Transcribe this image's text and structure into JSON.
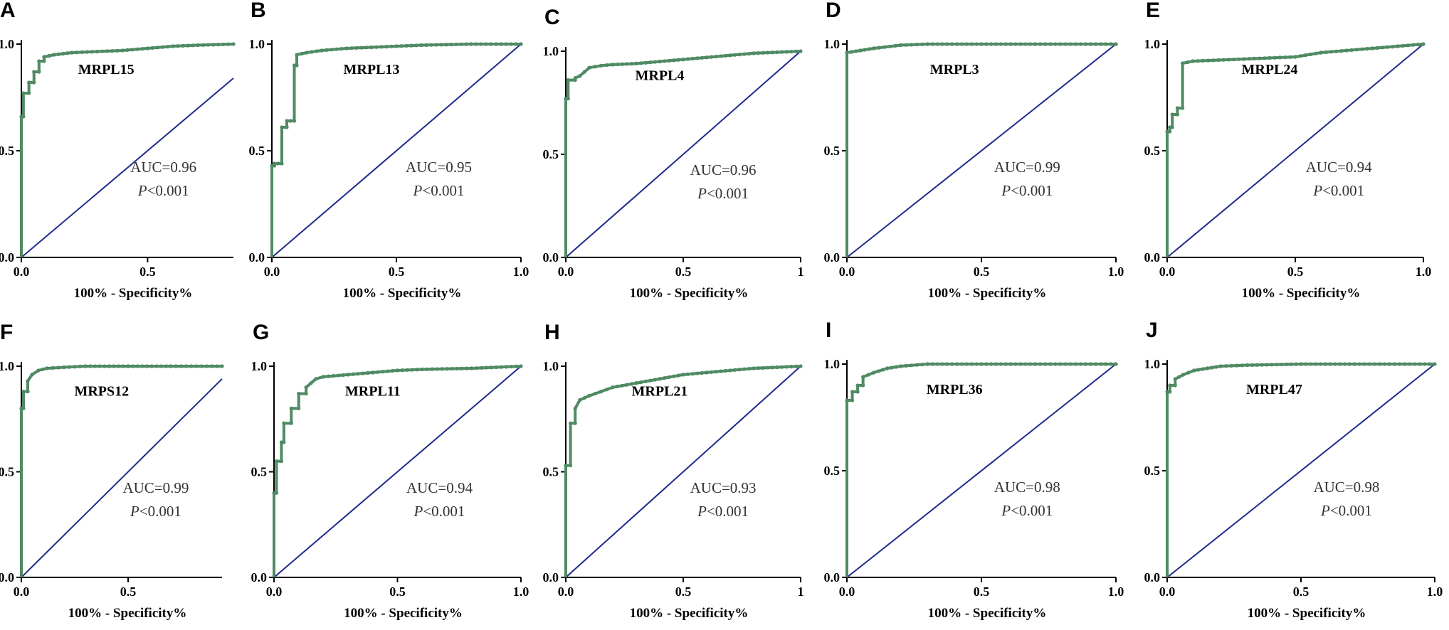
{
  "chart_data": [
    {
      "type": "line",
      "panel": "A",
      "title": "MRPL15",
      "auc_label": "AUC=0.96",
      "p_prefix": "P",
      "p_rest": "<0.001",
      "xlabel": "100% - Specificity%",
      "ylabel": "",
      "xticks": [
        "0.0",
        "0.5"
      ],
      "yticks": [
        "0.0",
        "0.5",
        "1.0"
      ],
      "xlim": [
        0,
        0.84
      ],
      "ylim": [
        0,
        1
      ],
      "series": [
        {
          "name": "ROC",
          "x": [
            0,
            0,
            0.008,
            0.008,
            0.03,
            0.03,
            0.05,
            0.05,
            0.07,
            0.07,
            0.09,
            0.09,
            0.13,
            0.2,
            0.3,
            0.4,
            0.5,
            0.6,
            0.7,
            0.84
          ],
          "y": [
            0,
            0.66,
            0.66,
            0.77,
            0.77,
            0.82,
            0.82,
            0.87,
            0.87,
            0.92,
            0.92,
            0.94,
            0.95,
            0.96,
            0.965,
            0.97,
            0.98,
            0.99,
            0.995,
            1.0
          ]
        },
        {
          "name": "Reference",
          "x": [
            0,
            0.84
          ],
          "y": [
            0,
            0.84
          ]
        }
      ]
    },
    {
      "type": "line",
      "panel": "B",
      "title": "MRPL13",
      "auc_label": "AUC=0.95",
      "p_prefix": "P",
      "p_rest": "<0.001",
      "xlabel": "100% - Specificity%",
      "ylabel": "",
      "xticks": [
        "0.0",
        "0.5",
        "1.0"
      ],
      "yticks": [
        "0.0",
        "0.5",
        "1.0"
      ],
      "xlim": [
        0,
        1
      ],
      "ylim": [
        0,
        1
      ],
      "series": [
        {
          "name": "ROC",
          "x": [
            0,
            0,
            0.01,
            0.01,
            0.04,
            0.04,
            0.06,
            0.06,
            0.09,
            0.09,
            0.1,
            0.1,
            0.14,
            0.2,
            0.3,
            0.4,
            0.5,
            0.6,
            0.8,
            1.0
          ],
          "y": [
            0,
            0.43,
            0.43,
            0.44,
            0.44,
            0.61,
            0.61,
            0.64,
            0.64,
            0.9,
            0.9,
            0.95,
            0.96,
            0.97,
            0.98,
            0.985,
            0.99,
            0.995,
            1.0,
            1.0
          ]
        },
        {
          "name": "Reference",
          "x": [
            0,
            1
          ],
          "y": [
            0,
            1
          ]
        }
      ]
    },
    {
      "type": "line",
      "panel": "C",
      "title": "MRPL4",
      "auc_label": "AUC=0.96",
      "p_prefix": "P",
      "p_rest": "<0.001",
      "xlabel": "100% - Specificity%",
      "ylabel": "",
      "xticks": [
        "0.0",
        "0.5",
        "1"
      ],
      "yticks": [
        "0.0",
        "0.5",
        "1.0"
      ],
      "xlim": [
        0,
        1
      ],
      "ylim": [
        0,
        1
      ],
      "series": [
        {
          "name": "ROC",
          "x": [
            0,
            0,
            0.01,
            0.01,
            0.04,
            0.04,
            0.06,
            0.08,
            0.1,
            0.15,
            0.2,
            0.3,
            0.4,
            0.5,
            0.6,
            0.7,
            0.8,
            0.9,
            1.0
          ],
          "y": [
            0,
            0.77,
            0.77,
            0.86,
            0.86,
            0.87,
            0.88,
            0.9,
            0.92,
            0.93,
            0.935,
            0.94,
            0.95,
            0.96,
            0.97,
            0.98,
            0.99,
            0.995,
            1.0
          ]
        },
        {
          "name": "Reference",
          "x": [
            0,
            1
          ],
          "y": [
            0,
            1
          ]
        }
      ]
    },
    {
      "type": "line",
      "panel": "D",
      "title": "MRPL3",
      "auc_label": "AUC=0.99",
      "p_prefix": "P",
      "p_rest": "<0.001",
      "xlabel": "100% - Specificity%",
      "ylabel": "",
      "xticks": [
        "0.0",
        "0.5",
        "1.0"
      ],
      "yticks": [
        "0.0",
        "0.5",
        "1.0"
      ],
      "xlim": [
        0,
        1
      ],
      "ylim": [
        0,
        1
      ],
      "series": [
        {
          "name": "ROC",
          "x": [
            0,
            0,
            0.05,
            0.1,
            0.2,
            0.3,
            0.5,
            0.7,
            1.0
          ],
          "y": [
            0,
            0.96,
            0.97,
            0.98,
            0.995,
            1.0,
            1.0,
            1.0,
            1.0
          ]
        },
        {
          "name": "Reference",
          "x": [
            0,
            1
          ],
          "y": [
            0,
            1
          ]
        }
      ]
    },
    {
      "type": "line",
      "panel": "E",
      "title": "MRPL24",
      "auc_label": "AUC=0.94",
      "p_prefix": "P",
      "p_rest": "<0.001",
      "xlabel": "100% - Specificity%",
      "ylabel": "",
      "xticks": [
        "0.0",
        "0.5",
        "1.0"
      ],
      "yticks": [
        "0.0",
        "0.5",
        "1.0"
      ],
      "xlim": [
        0,
        1
      ],
      "ylim": [
        0,
        1
      ],
      "series": [
        {
          "name": "ROC",
          "x": [
            0,
            0,
            0.01,
            0.01,
            0.02,
            0.02,
            0.04,
            0.04,
            0.06,
            0.06,
            0.1,
            0.2,
            0.3,
            0.4,
            0.5,
            0.6,
            0.7,
            0.8,
            0.9,
            1.0
          ],
          "y": [
            0,
            0.59,
            0.59,
            0.61,
            0.61,
            0.67,
            0.67,
            0.7,
            0.7,
            0.91,
            0.92,
            0.925,
            0.93,
            0.935,
            0.94,
            0.96,
            0.97,
            0.98,
            0.99,
            1.0
          ]
        },
        {
          "name": "Reference",
          "x": [
            0,
            1
          ],
          "y": [
            0,
            1
          ]
        }
      ]
    },
    {
      "type": "line",
      "panel": "F",
      "title": "MRPS12",
      "auc_label": "AUC=0.99",
      "p_prefix": "P",
      "p_rest": "<0.001",
      "xlabel": "100% - Specificity%",
      "ylabel": "",
      "xticks": [
        "0.0",
        "0.5"
      ],
      "yticks": [
        "0.0",
        "0.5",
        "1.0"
      ],
      "xlim": [
        0,
        0.94
      ],
      "ylim": [
        0,
        1
      ],
      "series": [
        {
          "name": "ROC",
          "x": [
            0,
            0,
            0.01,
            0.01,
            0.03,
            0.03,
            0.05,
            0.08,
            0.12,
            0.2,
            0.3,
            0.5,
            0.7,
            0.94
          ],
          "y": [
            0,
            0.8,
            0.8,
            0.88,
            0.88,
            0.93,
            0.96,
            0.98,
            0.99,
            0.995,
            1.0,
            1.0,
            1.0,
            1.0
          ]
        },
        {
          "name": "Reference",
          "x": [
            0,
            0.94
          ],
          "y": [
            0,
            0.94
          ]
        }
      ]
    },
    {
      "type": "line",
      "panel": "G",
      "title": "MRPL11",
      "auc_label": "AUC=0.94",
      "p_prefix": "P",
      "p_rest": "<0.001",
      "xlabel": "100% - Specificity%",
      "ylabel": "",
      "xticks": [
        "0.0",
        "0.5",
        "1.0"
      ],
      "yticks": [
        "0.0",
        "0.5",
        "1.0"
      ],
      "xlim": [
        0,
        1
      ],
      "ylim": [
        0,
        1
      ],
      "series": [
        {
          "name": "ROC",
          "x": [
            0,
            0,
            0.01,
            0.01,
            0.03,
            0.03,
            0.04,
            0.04,
            0.07,
            0.07,
            0.1,
            0.1,
            0.13,
            0.13,
            0.17,
            0.2,
            0.3,
            0.4,
            0.5,
            0.6,
            0.8,
            1.0
          ],
          "y": [
            0,
            0.4,
            0.4,
            0.55,
            0.55,
            0.64,
            0.64,
            0.73,
            0.73,
            0.8,
            0.8,
            0.87,
            0.87,
            0.9,
            0.94,
            0.95,
            0.96,
            0.97,
            0.98,
            0.985,
            0.99,
            1.0
          ]
        },
        {
          "name": "Reference",
          "x": [
            0,
            1
          ],
          "y": [
            0,
            1
          ]
        }
      ]
    },
    {
      "type": "line",
      "panel": "H",
      "title": "MRPL21",
      "auc_label": "AUC=0.93",
      "p_prefix": "P",
      "p_rest": "<0.001",
      "xlabel": "100% - Specificity%",
      "ylabel": "",
      "xticks": [
        "0.0",
        "0.5",
        "1"
      ],
      "yticks": [
        "0.0",
        "0.5",
        "1.0"
      ],
      "xlim": [
        0,
        1
      ],
      "ylim": [
        0,
        1
      ],
      "series": [
        {
          "name": "ROC",
          "x": [
            0,
            0,
            0.02,
            0.02,
            0.04,
            0.04,
            0.06,
            0.1,
            0.15,
            0.2,
            0.3,
            0.4,
            0.5,
            0.6,
            0.7,
            0.8,
            0.9,
            1.0
          ],
          "y": [
            0,
            0.53,
            0.53,
            0.73,
            0.73,
            0.8,
            0.84,
            0.86,
            0.88,
            0.9,
            0.92,
            0.94,
            0.96,
            0.97,
            0.98,
            0.99,
            0.995,
            1.0
          ]
        },
        {
          "name": "Reference",
          "x": [
            0,
            1
          ],
          "y": [
            0,
            1
          ]
        }
      ]
    },
    {
      "type": "line",
      "panel": "I",
      "title": "MRPL36",
      "auc_label": "AUC=0.98",
      "p_prefix": "P",
      "p_rest": "<0.001",
      "xlabel": "100% - Specificity%",
      "ylabel": "",
      "xticks": [
        "0.0",
        "0.5",
        "1.0"
      ],
      "yticks": [
        "0.0",
        "0.5",
        "1.0"
      ],
      "xlim": [
        0,
        1
      ],
      "ylim": [
        0,
        1
      ],
      "series": [
        {
          "name": "ROC",
          "x": [
            0,
            0,
            0.02,
            0.02,
            0.04,
            0.04,
            0.06,
            0.06,
            0.1,
            0.15,
            0.2,
            0.3,
            0.5,
            0.7,
            1.0
          ],
          "y": [
            0,
            0.83,
            0.83,
            0.87,
            0.87,
            0.9,
            0.9,
            0.94,
            0.96,
            0.98,
            0.99,
            1.0,
            1.0,
            1.0,
            1.0
          ]
        },
        {
          "name": "Reference",
          "x": [
            0,
            1
          ],
          "y": [
            0,
            1
          ]
        }
      ]
    },
    {
      "type": "line",
      "panel": "J",
      "title": "MRPL47",
      "auc_label": "AUC=0.98",
      "p_prefix": "P",
      "p_rest": "<0.001",
      "xlabel": "100% - Specificity%",
      "ylabel": "",
      "xticks": [
        "0.0",
        "0.5",
        "1.0"
      ],
      "yticks": [
        "0.0",
        "0.5",
        "1.0"
      ],
      "xlim": [
        0,
        1
      ],
      "ylim": [
        0,
        1
      ],
      "series": [
        {
          "name": "ROC",
          "x": [
            0,
            0,
            0.01,
            0.01,
            0.03,
            0.03,
            0.06,
            0.1,
            0.15,
            0.2,
            0.3,
            0.5,
            0.7,
            1.0
          ],
          "y": [
            0,
            0.87,
            0.87,
            0.9,
            0.9,
            0.93,
            0.95,
            0.97,
            0.98,
            0.99,
            0.995,
            1.0,
            1.0,
            1.0
          ]
        },
        {
          "name": "Reference",
          "x": [
            0,
            1
          ],
          "y": [
            0,
            1
          ]
        }
      ]
    }
  ],
  "colors": {
    "roc": "#4f8a63",
    "reference": "#1f2a8a",
    "axis": "#000000"
  }
}
